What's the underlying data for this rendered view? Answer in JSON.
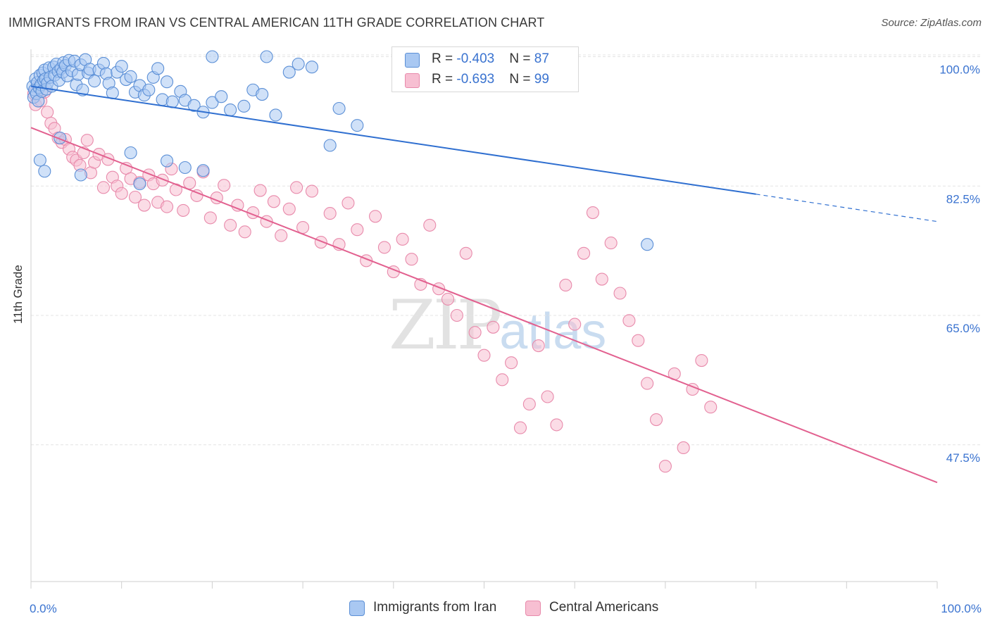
{
  "title": "IMMIGRANTS FROM IRAN VS CENTRAL AMERICAN 11TH GRADE CORRELATION CHART",
  "source": "Source: ZipAtlas.com",
  "watermark": {
    "part1": "ZIP",
    "part2": "atlas"
  },
  "legend": {
    "rows": [
      {
        "r_label": "R = ",
        "r_value": "-0.403",
        "n_label": "N = ",
        "n_value": "87"
      },
      {
        "r_label": "R = ",
        "r_value": "-0.693",
        "n_label": "N = ",
        "n_value": "99"
      }
    ]
  },
  "colors": {
    "iran_fill": "#a9c8f2",
    "iran_stroke": "#5b8fd6",
    "iran_line": "#2f6fd0",
    "central_fill": "#f7bfd2",
    "central_stroke": "#e88aab",
    "central_line": "#e2608f",
    "grid": "#e4e4e4",
    "axis_text": "#3a73d0"
  },
  "chart_data": {
    "type": "scatter",
    "title": "IMMIGRANTS FROM IRAN VS CENTRAL AMERICAN 11TH GRADE CORRELATION CHART",
    "xlabel": "",
    "ylabel": "11th Grade",
    "xlim": [
      0,
      100
    ],
    "ylim": [
      29,
      101
    ],
    "x_tick_labels": [
      "0.0%",
      "100.0%"
    ],
    "y_ticks": [
      47.5,
      65.0,
      82.5,
      100.0
    ],
    "y_tick_labels": [
      "47.5%",
      "65.0%",
      "82.5%",
      "100.0%"
    ],
    "grid": true,
    "legend_position": "top-center",
    "series": [
      {
        "name": "Immigrants from Iran",
        "R": -0.403,
        "N": 87,
        "trend": {
          "x0": 0,
          "y0": 96.0,
          "x1": 80,
          "y1": 81.4,
          "dashed_to": 100,
          "dashed_y": 77.7
        },
        "points": [
          [
            0.2,
            96
          ],
          [
            0.3,
            94.5
          ],
          [
            0.4,
            95.5
          ],
          [
            0.5,
            97
          ],
          [
            0.6,
            95
          ],
          [
            0.7,
            96.5
          ],
          [
            0.8,
            94
          ],
          [
            0.9,
            95.8
          ],
          [
            1.0,
            97.5
          ],
          [
            1.1,
            96.2
          ],
          [
            1.2,
            95.3
          ],
          [
            1.3,
            97.8
          ],
          [
            1.4,
            96.8
          ],
          [
            1.5,
            98.2
          ],
          [
            1.6,
            97
          ],
          [
            1.7,
            95.6
          ],
          [
            1.8,
            96.4
          ],
          [
            2.0,
            98.5
          ],
          [
            2.1,
            97.2
          ],
          [
            2.3,
            96
          ],
          [
            2.5,
            98.6
          ],
          [
            2.6,
            97.5
          ],
          [
            2.8,
            99
          ],
          [
            3.0,
            98
          ],
          [
            3.1,
            96.8
          ],
          [
            3.3,
            98.4
          ],
          [
            3.5,
            97.9
          ],
          [
            3.6,
            99.2
          ],
          [
            3.8,
            98.8
          ],
          [
            4.0,
            97.4
          ],
          [
            4.2,
            99.5
          ],
          [
            4.5,
            98.1
          ],
          [
            4.8,
            99.4
          ],
          [
            5.0,
            96.2
          ],
          [
            5.2,
            97.6
          ],
          [
            5.5,
            98.9
          ],
          [
            5.7,
            95.5
          ],
          [
            6.0,
            99.6
          ],
          [
            6.3,
            97.8
          ],
          [
            6.5,
            98.3
          ],
          [
            7.0,
            96.7
          ],
          [
            7.5,
            98.2
          ],
          [
            8.0,
            99.1
          ],
          [
            8.3,
            97.7
          ],
          [
            8.6,
            96.4
          ],
          [
            9.0,
            95.1
          ],
          [
            9.5,
            97.9
          ],
          [
            10.0,
            98.7
          ],
          [
            10.5,
            96.9
          ],
          [
            11.0,
            97.3
          ],
          [
            11.5,
            95.2
          ],
          [
            12.0,
            96.1
          ],
          [
            12.5,
            94.8
          ],
          [
            13.0,
            95.5
          ],
          [
            13.5,
            97.2
          ],
          [
            14.0,
            98.4
          ],
          [
            14.5,
            94.2
          ],
          [
            15.0,
            96.6
          ],
          [
            15.6,
            93.9
          ],
          [
            16.5,
            95.3
          ],
          [
            17.0,
            94.1
          ],
          [
            18.0,
            93.4
          ],
          [
            19.0,
            92.5
          ],
          [
            20.0,
            93.8
          ],
          [
            21.0,
            94.6
          ],
          [
            22.0,
            92.8
          ],
          [
            23.5,
            93.3
          ],
          [
            24.5,
            95.5
          ],
          [
            25.5,
            94.9
          ],
          [
            27.0,
            92.1
          ],
          [
            28.5,
            97.9
          ],
          [
            29.5,
            99.0
          ],
          [
            31.0,
            98.6
          ],
          [
            33.0,
            88.0
          ],
          [
            34.0,
            93.0
          ],
          [
            36.0,
            90.7
          ],
          [
            3.2,
            89.0
          ],
          [
            1.0,
            86.0
          ],
          [
            5.5,
            84.0
          ],
          [
            11.0,
            87.0
          ],
          [
            12.0,
            82.8
          ],
          [
            15.0,
            85.9
          ],
          [
            17.0,
            85.0
          ],
          [
            19.0,
            84.6
          ],
          [
            1.5,
            84.5
          ],
          [
            20.0,
            100
          ],
          [
            26.0,
            100
          ],
          [
            68,
            74.6
          ]
        ]
      },
      {
        "name": "Central Americans",
        "R": -0.693,
        "N": 99,
        "trend": {
          "x0": 0,
          "y0": 90.4,
          "x1": 100,
          "y1": 42.4
        },
        "points": [
          [
            0.3,
            95
          ],
          [
            0.5,
            93.5
          ],
          [
            0.8,
            96
          ],
          [
            1.1,
            94
          ],
          [
            1.5,
            95.2
          ],
          [
            1.8,
            92.5
          ],
          [
            2.2,
            91
          ],
          [
            2.6,
            90.3
          ],
          [
            3.0,
            89
          ],
          [
            3.4,
            88.4
          ],
          [
            3.8,
            88.8
          ],
          [
            4.2,
            87.5
          ],
          [
            4.6,
            86.4
          ],
          [
            5.0,
            86
          ],
          [
            5.4,
            85.3
          ],
          [
            5.8,
            87
          ],
          [
            6.2,
            88.7
          ],
          [
            6.6,
            84.3
          ],
          [
            7.0,
            85.7
          ],
          [
            7.5,
            86.8
          ],
          [
            8.0,
            82.3
          ],
          [
            8.5,
            86.1
          ],
          [
            9.0,
            83.7
          ],
          [
            9.5,
            82.5
          ],
          [
            10.0,
            81.5
          ],
          [
            10.5,
            84.9
          ],
          [
            11.0,
            83.5
          ],
          [
            11.5,
            81.0
          ],
          [
            12.0,
            83.0
          ],
          [
            12.5,
            79.9
          ],
          [
            13.0,
            84.0
          ],
          [
            13.5,
            82.8
          ],
          [
            14.0,
            80.3
          ],
          [
            14.5,
            83.3
          ],
          [
            15.0,
            79.7
          ],
          [
            15.5,
            84.8
          ],
          [
            16.0,
            82.0
          ],
          [
            16.8,
            79.2
          ],
          [
            17.5,
            82.9
          ],
          [
            18.3,
            81.2
          ],
          [
            19.0,
            84.4
          ],
          [
            19.8,
            78.2
          ],
          [
            20.5,
            80.9
          ],
          [
            21.3,
            82.6
          ],
          [
            22.0,
            77.2
          ],
          [
            22.8,
            79.9
          ],
          [
            23.6,
            76.3
          ],
          [
            24.5,
            78.9
          ],
          [
            25.3,
            81.9
          ],
          [
            26.0,
            77.7
          ],
          [
            26.8,
            80.4
          ],
          [
            27.6,
            75.8
          ],
          [
            28.5,
            79.4
          ],
          [
            29.3,
            82.3
          ],
          [
            30.0,
            76.9
          ],
          [
            31.0,
            81.8
          ],
          [
            32.0,
            74.9
          ],
          [
            33.0,
            78.8
          ],
          [
            34.0,
            74.6
          ],
          [
            35.0,
            80.2
          ],
          [
            36.0,
            76.6
          ],
          [
            37.0,
            72.4
          ],
          [
            38.0,
            78.4
          ],
          [
            39.0,
            74.2
          ],
          [
            40.0,
            70.9
          ],
          [
            41.0,
            75.3
          ],
          [
            42.0,
            72.6
          ],
          [
            43.0,
            69.2
          ],
          [
            44.0,
            77.2
          ],
          [
            45.0,
            68.6
          ],
          [
            46.0,
            67.2
          ],
          [
            47.0,
            65.0
          ],
          [
            48.0,
            73.4
          ],
          [
            49.0,
            62.7
          ],
          [
            50.0,
            59.6
          ],
          [
            51.0,
            63.4
          ],
          [
            52.0,
            56.3
          ],
          [
            53.0,
            58.6
          ],
          [
            54.0,
            49.8
          ],
          [
            55.0,
            53.0
          ],
          [
            56.0,
            60.9
          ],
          [
            57.0,
            54.0
          ],
          [
            58.0,
            50.2
          ],
          [
            59.0,
            69.1
          ],
          [
            60.0,
            63.8
          ],
          [
            61.0,
            73.4
          ],
          [
            62.0,
            78.9
          ],
          [
            63.0,
            69.9
          ],
          [
            64.0,
            74.8
          ],
          [
            65.0,
            68.0
          ],
          [
            66.0,
            64.3
          ],
          [
            67.0,
            61.6
          ],
          [
            68.0,
            55.8
          ],
          [
            69.0,
            50.9
          ],
          [
            70.0,
            44.6
          ],
          [
            71.0,
            57.1
          ],
          [
            72.0,
            47.1
          ],
          [
            73.0,
            55.0
          ],
          [
            74.0,
            58.9
          ],
          [
            75.0,
            52.6
          ]
        ]
      }
    ]
  },
  "bottom_legend": [
    {
      "label": "Immigrants from Iran"
    },
    {
      "label": "Central Americans"
    }
  ]
}
